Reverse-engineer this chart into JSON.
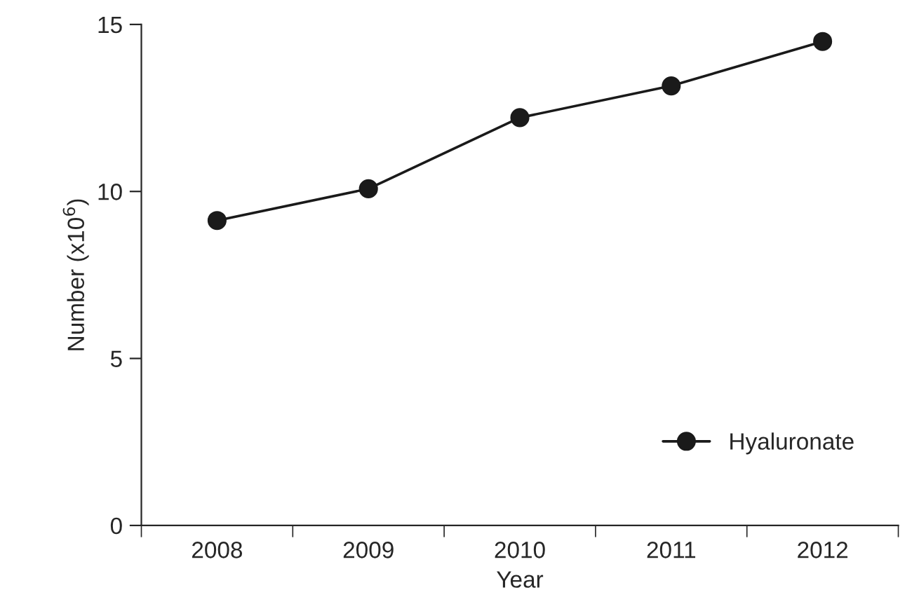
{
  "chart_data": {
    "type": "line",
    "xlabel": "Year",
    "ylabel": "Number (x10$^{6}$)",
    "categories": [
      "2008",
      "2009",
      "2010",
      "2011",
      "2012"
    ],
    "series": [
      {
        "name": "Hyaluronate",
        "color": "#1a1a1a",
        "values": [
          9.13,
          10.08,
          12.21,
          13.16,
          14.49
        ]
      }
    ],
    "ylim": [
      0,
      15
    ],
    "yticks": [
      0,
      5,
      10,
      15
    ],
    "grid": false,
    "legend": "bottom right",
    "marker": "circle",
    "line_style": "solid"
  }
}
